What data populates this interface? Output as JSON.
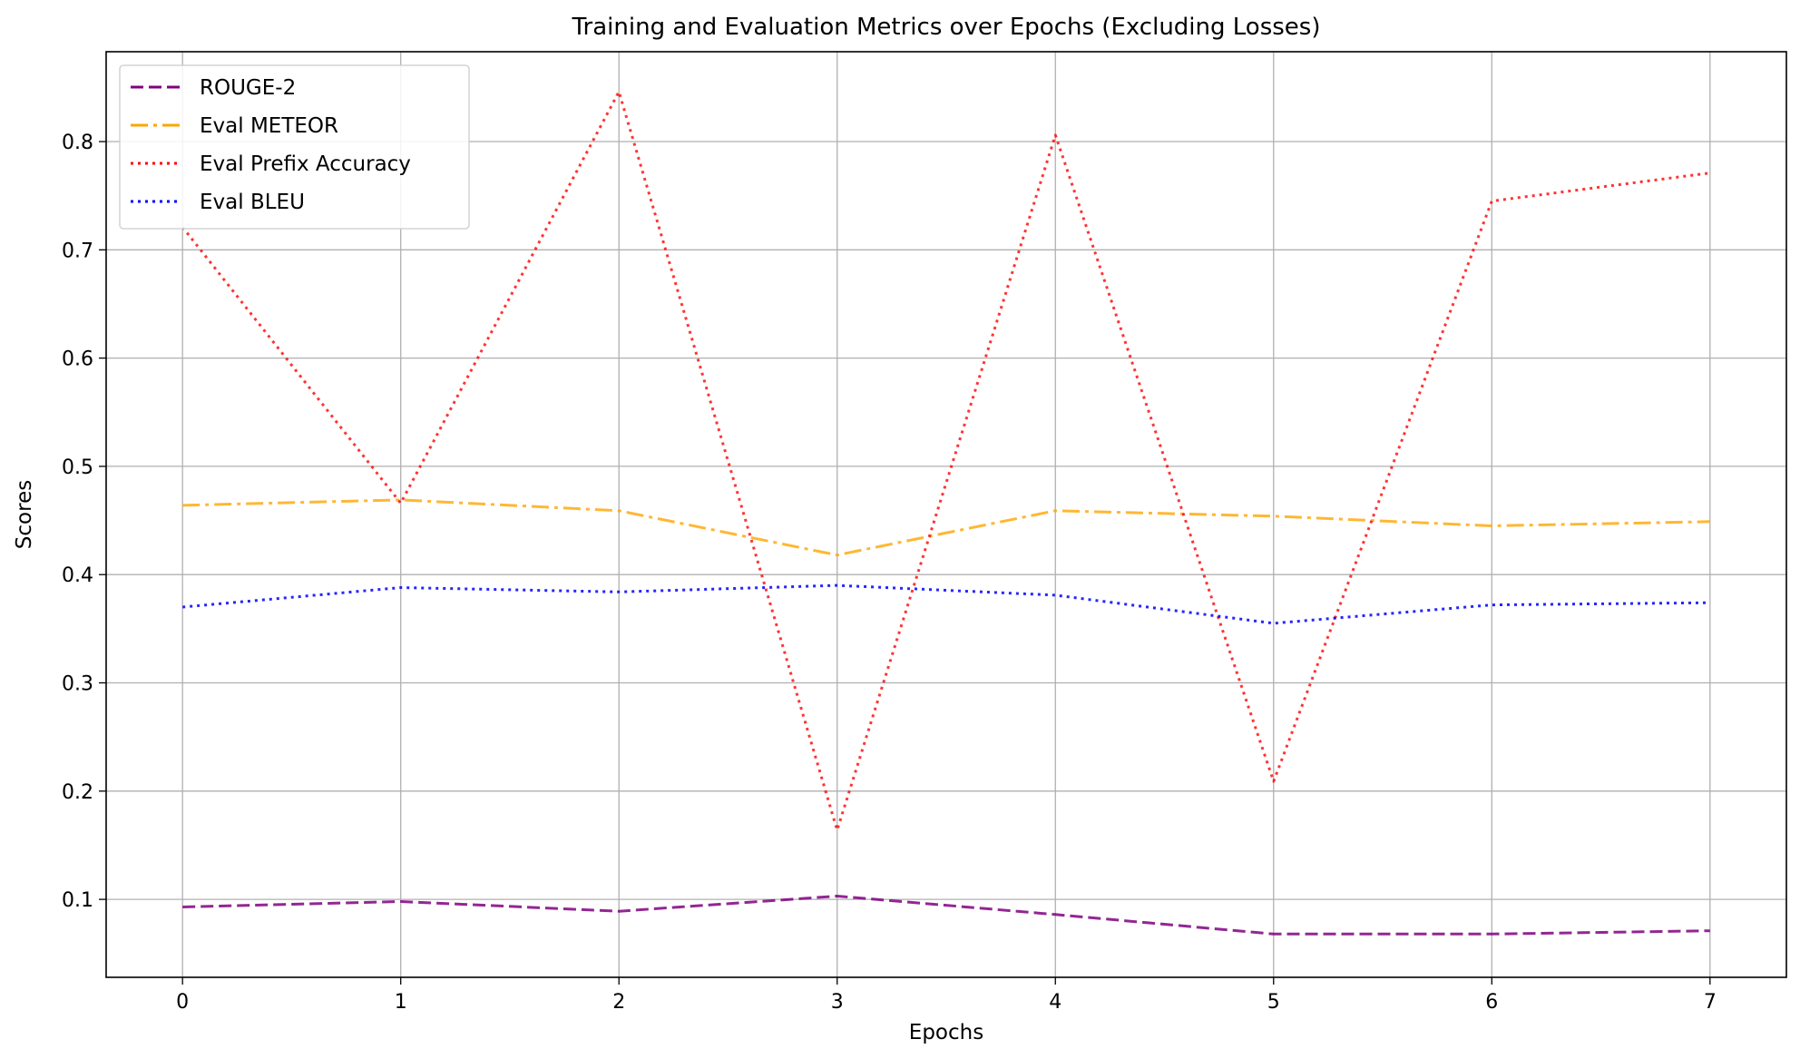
{
  "chart_data": {
    "type": "line",
    "title": "Training and Evaluation Metrics over Epochs (Excluding Losses)",
    "xlabel": "Epochs",
    "ylabel": "Scores",
    "x": [
      0,
      1,
      2,
      3,
      4,
      5,
      6,
      7
    ],
    "xticks": [
      0,
      1,
      2,
      3,
      4,
      5,
      6,
      7
    ],
    "yticks": [
      0.1,
      0.2,
      0.3,
      0.4,
      0.5,
      0.6,
      0.7,
      0.8
    ],
    "xlim": [
      -0.35,
      7.35
    ],
    "ylim": [
      0.028,
      0.883
    ],
    "grid": true,
    "legend_position": "top-left",
    "series": [
      {
        "name": "ROUGE-2",
        "color": "#800080",
        "linestyle": "dashed",
        "values": [
          0.093,
          0.098,
          0.089,
          0.103,
          0.086,
          0.068,
          0.068,
          0.071
        ]
      },
      {
        "name": "Eval METEOR",
        "color": "#FFA500",
        "linestyle": "dashdot",
        "values": [
          0.464,
          0.469,
          0.459,
          0.418,
          0.459,
          0.454,
          0.445,
          0.449
        ]
      },
      {
        "name": "Eval Prefix Accuracy",
        "color": "#FF0000",
        "linestyle": "dotted",
        "values": [
          0.721,
          0.466,
          0.846,
          0.164,
          0.806,
          0.209,
          0.745,
          0.771
        ]
      },
      {
        "name": "Eval BLEU",
        "color": "#0000FF",
        "linestyle": "dotted",
        "values": [
          0.37,
          0.388,
          0.384,
          0.39,
          0.381,
          0.355,
          0.372,
          0.374
        ]
      }
    ]
  }
}
